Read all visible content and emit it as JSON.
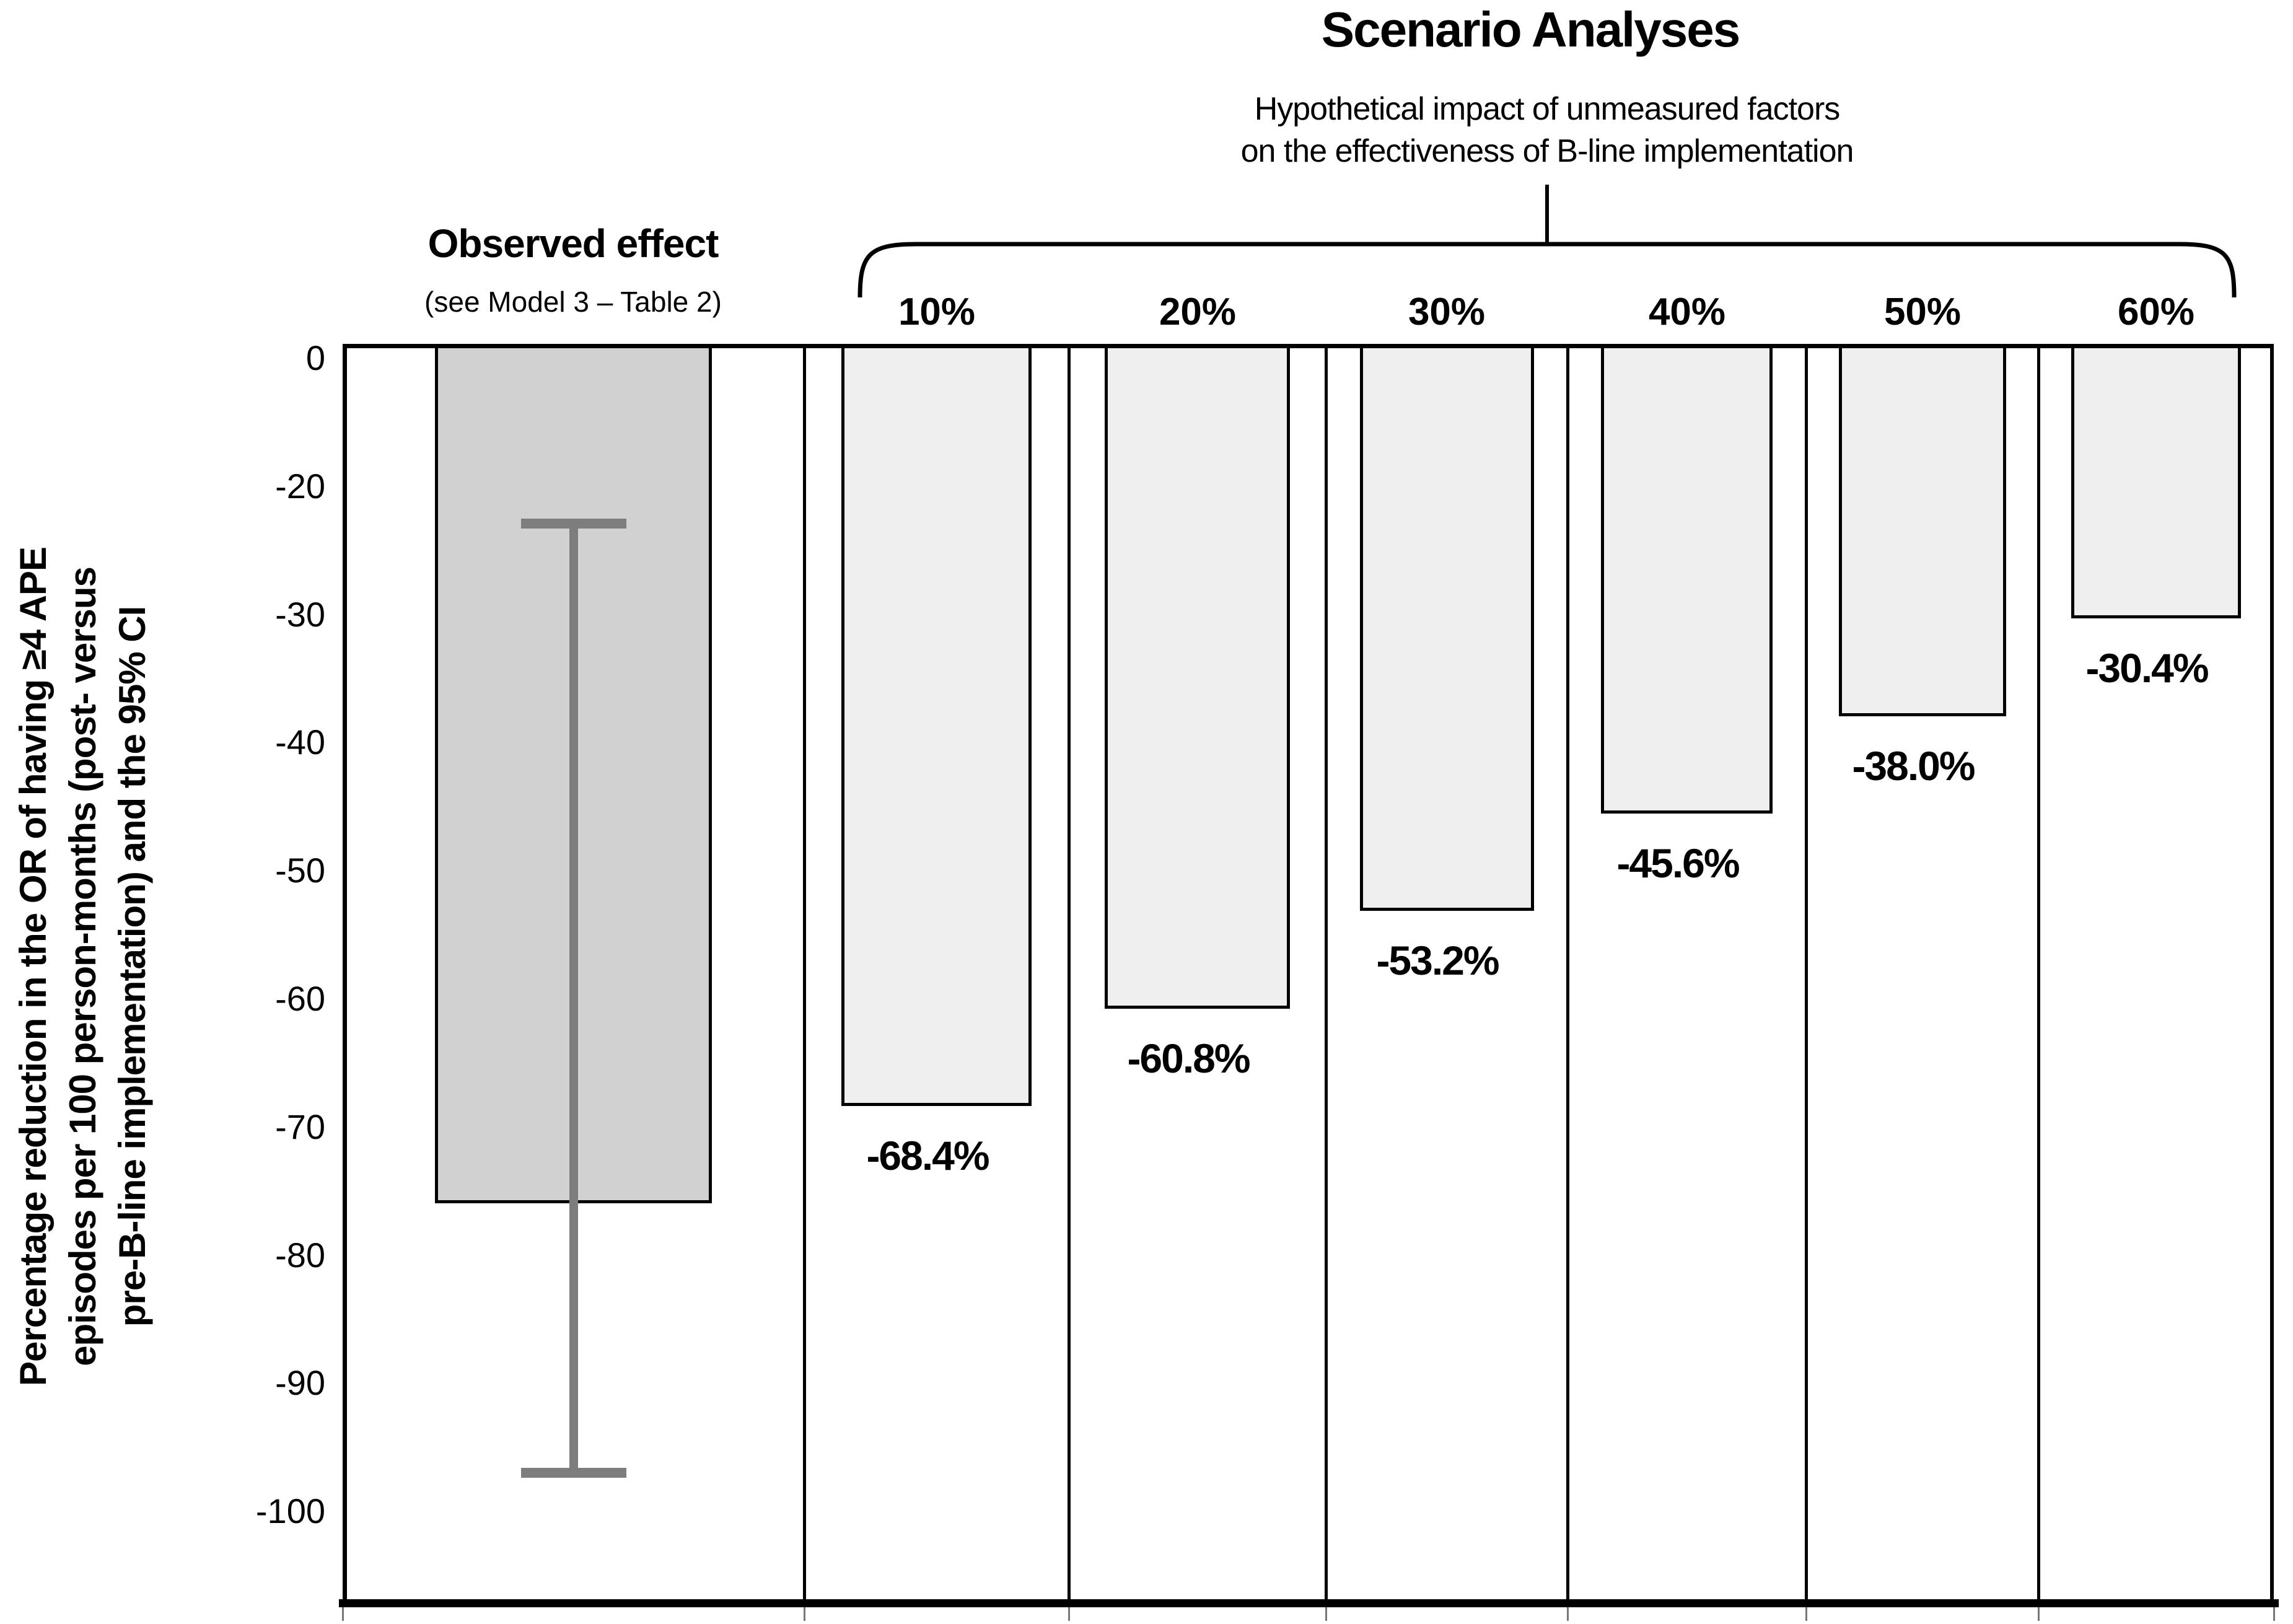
{
  "title": "Scenario Analyses",
  "subtitle": {
    "line1": "Hypothetical impact of unmeasured factors",
    "line2": "on the effectiveness of B-line implementation"
  },
  "observed_column": {
    "header": "Observed effect",
    "subheader": "(see Model 3 – Table 2)"
  },
  "y_axis": {
    "title_line1": "Percentage reduction in the OR of having ≥4 APE",
    "title_line2": "episodes per 100 person-months (post- versus",
    "title_line3": "pre-B-line implementation) and the 95% CI",
    "tick_labels": [
      "0",
      "-20",
      "-30",
      "-40",
      "-50",
      "-60",
      "-70",
      "-80",
      "-90",
      "-100"
    ]
  },
  "chart_data": {
    "type": "bar",
    "title": "Scenario Analyses",
    "subtitle": "Hypothetical impact of unmeasured factors on the effectiveness of B-line implementation",
    "categories": [
      "Observed effect",
      "10%",
      "20%",
      "30%",
      "40%",
      "50%",
      "60%"
    ],
    "values": [
      -76.0,
      -68.4,
      -60.8,
      -53.2,
      -45.6,
      -38.0,
      -30.4
    ],
    "bar_labels": [
      null,
      "-68.4%",
      "-60.8%",
      "-53.2%",
      "-45.6%",
      "-38.0%",
      "-30.4%"
    ],
    "error_bar": {
      "category": "Observed effect",
      "upper": -23,
      "lower": -97
    },
    "ylabel": "Percentage reduction in the OR of having ≥4 APE episodes per 100 person-months (post- versus pre-B-line implementation) and the 95% CI",
    "yticks": [
      0,
      -20,
      -30,
      -40,
      -50,
      -60,
      -70,
      -80,
      -90,
      -100
    ],
    "ylim": [
      -107,
      0
    ],
    "grid": false,
    "legend": "none",
    "colors": {
      "observed_bar": "#d1d1d1",
      "scenario_bar": "#efefef",
      "bar_border": "#000000",
      "error_bar": "#7d7d7d",
      "axis": "#000000"
    }
  }
}
